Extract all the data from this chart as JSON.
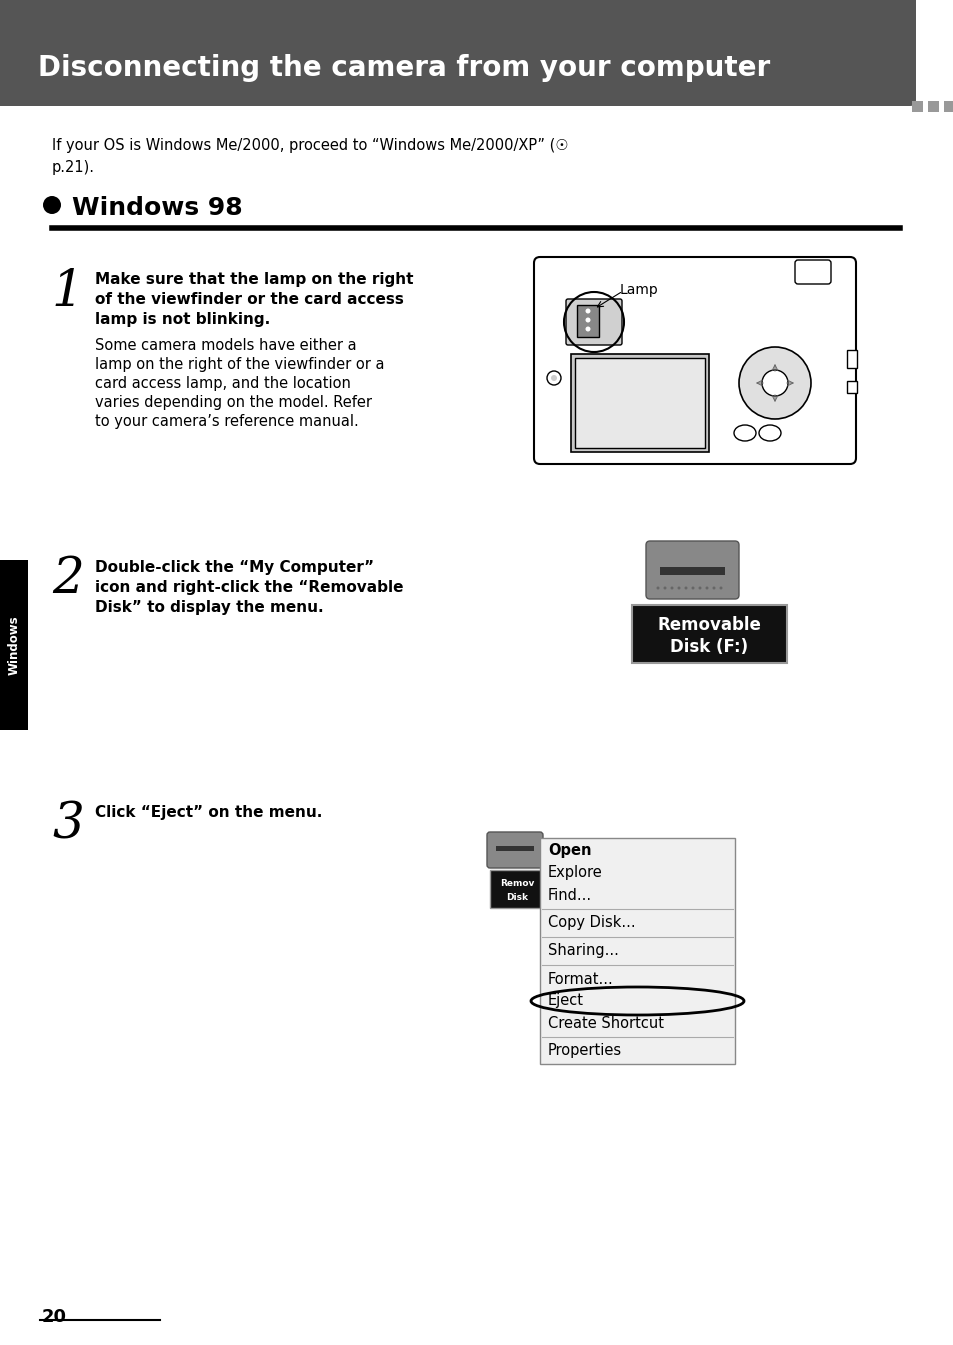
{
  "title": "Disconnecting the camera from your computer",
  "title_bg": "#555555",
  "title_color": "#ffffff",
  "page_bg": "#ffffff",
  "intro_text_line1": "If your OS is Windows Me/2000, proceed to “Windows Me/2000/XP” (☉",
  "intro_text_line2": "p.21).",
  "section_header": "Windows 98",
  "step1_number": "1",
  "step1_bold_lines": [
    "Make sure that the lamp on the right",
    "of the viewfinder or the card access",
    "lamp is not blinking."
  ],
  "step1_normal_lines": [
    "Some camera models have either a",
    "lamp on the right of the viewfinder or a",
    "card access lamp, and the location",
    "varies depending on the model. Refer",
    "to your camera’s reference manual."
  ],
  "step2_number": "2",
  "step2_bold_lines": [
    "Double-click the “My Computer”",
    "icon and right-click the “Removable",
    "Disk” to display the menu."
  ],
  "step3_number": "3",
  "step3_bold_lines": [
    "Click “Eject” on the menu."
  ],
  "sidebar_text": "Windows",
  "sidebar_bg": "#000000",
  "sidebar_text_color": "#ffffff",
  "page_number": "20",
  "lamp_label": "Lamp",
  "menu_items": [
    {
      "text": "Open",
      "bold": true,
      "sep_after": false,
      "underline_idx": 0
    },
    {
      "text": "Explore",
      "bold": false,
      "sep_after": false,
      "underline_idx": 0
    },
    {
      "text": "Find...",
      "bold": false,
      "sep_after": true,
      "underline_idx": 0
    },
    {
      "text": "Copy Disk...",
      "bold": false,
      "sep_after": true,
      "underline_idx": 0
    },
    {
      "text": "Sharing...",
      "bold": false,
      "sep_after": true,
      "underline_idx": 0
    },
    {
      "text": "Format...",
      "bold": false,
      "sep_after": false,
      "underline_idx": 0
    },
    {
      "text": "Eject",
      "bold": false,
      "sep_after": false,
      "underline_idx": -1
    },
    {
      "text": "Create Shortcut",
      "bold": false,
      "sep_after": true,
      "underline_idx": 7
    },
    {
      "text": "Properties",
      "bold": false,
      "sep_after": false,
      "underline_idx": 0
    }
  ],
  "dash_color": "#999999",
  "rule_color": "#000000"
}
